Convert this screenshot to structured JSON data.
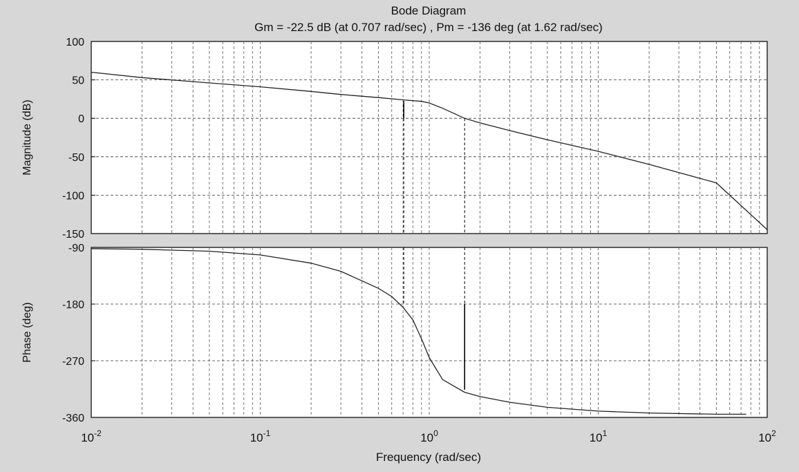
{
  "chart_data": {
    "type": "line",
    "title": "Bode Diagram",
    "subtitle": "Gm = -22.5 dB (at 0.707 rad/sec) ,  Pm = -136 deg (at 1.62 rad/sec)",
    "xlabel": "Frequency  (rad/sec)",
    "xscale": "log",
    "xlim": [
      0.01,
      100
    ],
    "x_ticks": [
      {
        "base": "10",
        "exp": "-2"
      },
      {
        "base": "10",
        "exp": "-1"
      },
      {
        "base": "10",
        "exp": "0"
      },
      {
        "base": "10",
        "exp": "1"
      },
      {
        "base": "10",
        "exp": "2"
      }
    ],
    "grid": true,
    "gain_margin": {
      "value_db": -22.5,
      "frequency": 0.707
    },
    "phase_margin": {
      "value_deg": -136,
      "frequency": 1.62
    },
    "panels": [
      {
        "ylabel": "Magnitude (dB)",
        "ylim": [
          -150,
          100
        ],
        "yticks": [
          100,
          50,
          0,
          -50,
          -100,
          -150
        ],
        "series": [
          {
            "x": [
              0.01,
              0.02,
              0.05,
              0.1,
              0.2,
              0.3,
              0.5,
              0.7,
              0.9,
              1.0,
              1.2,
              1.62,
              2,
              3,
              5,
              10,
              20,
              50,
              100
            ],
            "y": [
              60,
              53,
              46,
              41,
              35,
              31,
              27,
              24,
              22,
              20,
              13,
              0,
              -6,
              -16,
              -28,
              -43,
              -60,
              -84,
              -145
            ]
          }
        ]
      },
      {
        "ylabel": "Phase (deg)",
        "ylim": [
          -360,
          -90
        ],
        "yticks": [
          -90,
          -180,
          -270,
          -360
        ],
        "series": [
          {
            "x": [
              0.01,
              0.02,
              0.05,
              0.1,
              0.2,
              0.3,
              0.5,
              0.6,
              0.7,
              0.8,
              0.9,
              1.0,
              1.2,
              1.62,
              2,
              3,
              5,
              10,
              20,
              50,
              75
            ],
            "y": [
              -92,
              -93,
              -96,
              -102,
              -115,
              -128,
              -155,
              -168,
              -185,
              -205,
              -235,
              -265,
              -300,
              -320,
              -327,
              -336,
              -344,
              -350,
              -353,
              -355,
              -355
            ]
          }
        ]
      }
    ]
  }
}
